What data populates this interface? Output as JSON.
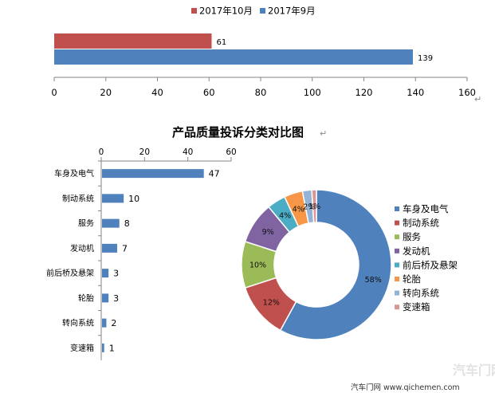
{
  "colors": {
    "oct": "#C0504D",
    "sep": "#4F81BD",
    "bars": "#4F81BD",
    "axis": "#868686",
    "watermark": "#dcdcdc"
  },
  "chart_data": [
    {
      "type": "bar",
      "orientation": "horizontal",
      "title": "",
      "series": [
        {
          "name": "2017年10月",
          "values": [
            61
          ],
          "color": "#C0504D"
        },
        {
          "name": "2017年9月",
          "values": [
            139
          ],
          "color": "#4F81BD"
        }
      ],
      "xlim": [
        0,
        160
      ],
      "ticks": [
        "0",
        "20",
        "40",
        "60",
        "80",
        "100",
        "120",
        "140",
        "160"
      ],
      "legend": "top",
      "grid": false
    },
    {
      "type": "bar",
      "orientation": "horizontal",
      "title": "产品质量投诉分类对比图",
      "categories": [
        "车身及电气",
        "制动系统",
        "服务",
        "发动机",
        "前后桥及悬架",
        "轮胎",
        "转向系统",
        "变速箱"
      ],
      "values": [
        47,
        10,
        8,
        7,
        3,
        3,
        2,
        1
      ],
      "xlim": [
        0,
        60
      ],
      "ticks": [
        "0",
        "20",
        "40",
        "60"
      ],
      "axis_position": "top",
      "grid": false
    },
    {
      "type": "pie",
      "donut": true,
      "categories": [
        "车身及电气",
        "制动系统",
        "服务",
        "发动机",
        "前后桥及悬架",
        "轮胎",
        "转向系统",
        "变速箱"
      ],
      "values": [
        58,
        12,
        10,
        9,
        4,
        4,
        2,
        1
      ],
      "labels": [
        "58%",
        "12%",
        "10%",
        "9%",
        "4%",
        "4%",
        "2%",
        "1%"
      ],
      "colors": [
        "#4F81BD",
        "#C0504D",
        "#9BBB59",
        "#8064A2",
        "#4BACC6",
        "#F79646",
        "#95B3D7",
        "#D99694"
      ],
      "legend": "right"
    }
  ],
  "footer": {
    "source": "汽车门网 www.qichemen.com",
    "watermark_logo": "汽车门网"
  }
}
